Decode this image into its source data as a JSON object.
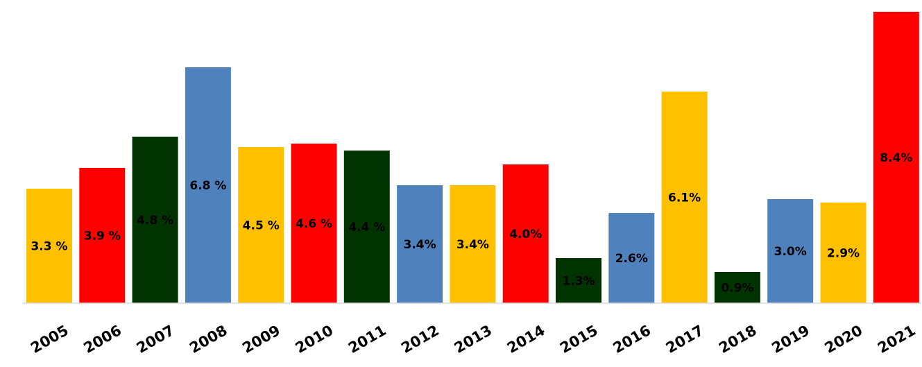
{
  "chart_data": {
    "type": "bar",
    "categories": [
      "2005",
      "2006",
      "2007",
      "2008",
      "2009",
      "2010",
      "2011",
      "2012",
      "2013",
      "2014",
      "2015",
      "2016",
      "2017",
      "2018",
      "2019",
      "2020",
      "2021"
    ],
    "values": [
      3.3,
      3.9,
      4.8,
      6.8,
      4.5,
      4.6,
      4.4,
      3.4,
      3.4,
      4.0,
      1.3,
      2.6,
      6.1,
      0.9,
      3.0,
      2.9,
      8.4
    ],
    "data_labels": [
      "3.3 %",
      "3.9 %",
      "4.8 %",
      "6.8 %",
      "4.5 %",
      "4.6 %",
      "4.4 %",
      "3.4%",
      "3.4%",
      "4.0%",
      "1.3%",
      "2.6%",
      "6.1%",
      "0.9%",
      "3.0%",
      "2.9%",
      "8.4%"
    ],
    "colors": [
      "#FFC000",
      "#FF0000",
      "#003300",
      "#4F81BD",
      "#FFC000",
      "#FF0000",
      "#003300",
      "#4F81BD",
      "#FFC000",
      "#FF0000",
      "#003300",
      "#4F81BD",
      "#FFC000",
      "#003300",
      "#4F81BD",
      "#FFC000",
      "#FF0000"
    ],
    "title": "",
    "xlabel": "",
    "ylabel": "",
    "ylim": [
      0,
      8.5
    ],
    "grid": false,
    "legend": "none"
  }
}
